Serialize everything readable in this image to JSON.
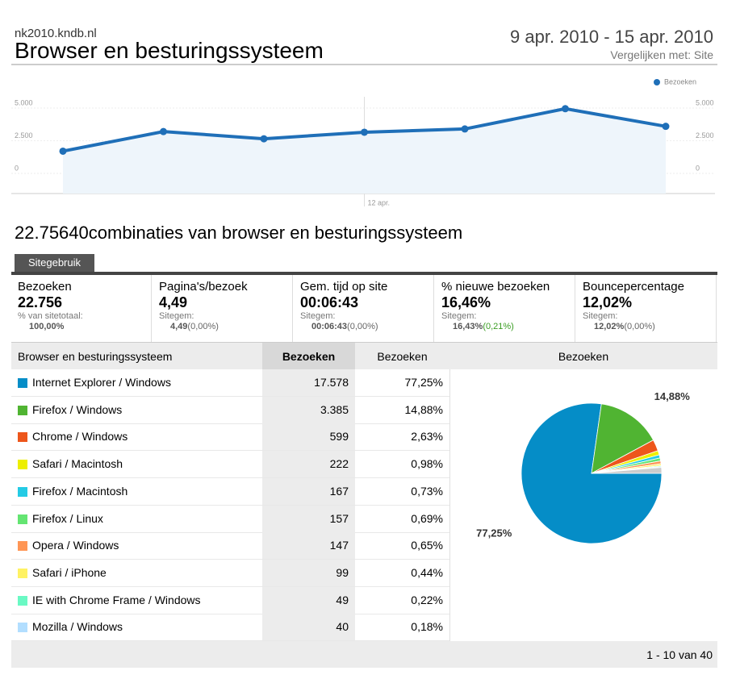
{
  "header": {
    "site": "nk2010.kndb.nl",
    "title": "Browser en besturingssysteem",
    "date_range": "9 apr. 2010 - 15 apr. 2010",
    "compare": "Vergelijken met: Site"
  },
  "chart_data": [
    {
      "type": "line",
      "x": [
        null,
        null,
        null,
        "12 apr.",
        null,
        null,
        null
      ],
      "series": [
        {
          "name": "Bezoeken",
          "color": "#1f6fb8",
          "values": [
            1700,
            3200,
            2650,
            3150,
            3400,
            4950,
            3600
          ]
        }
      ],
      "ylim": [
        0,
        6000
      ],
      "yticks": [
        0,
        {
          "value": 2500,
          "label": "2.500"
        },
        {
          "value": 5000,
          "label": "5.000"
        }
      ],
      "grid": true,
      "legend": "top-right"
    },
    {
      "type": "pie",
      "values": [
        77.25,
        14.88,
        2.63,
        0.98,
        0.73,
        0.69,
        0.65,
        0.44,
        0.22,
        0.18,
        1.35
      ],
      "value_labels": [
        "77,25%",
        "14,88%",
        null,
        null,
        null,
        null,
        null,
        null,
        null,
        null,
        null
      ],
      "colors": [
        "#058dc7",
        "#50b432",
        "#ed561b",
        "#edef00",
        "#24cbe5",
        "#64e572",
        "#ff9655",
        "#fff263",
        "#6af9c4",
        "#b2deff",
        "#cccccc"
      ]
    }
  ],
  "section_title": "22.75640combinaties van browser en besturingssysteem",
  "tab": "Sitegebruik",
  "summary": [
    {
      "label": "Bezoeken",
      "value": "22.756",
      "sub_label": "% van sitetotaal:",
      "sub_value": "100,00%"
    },
    {
      "label": "Pagina's/bezoek",
      "value": "4,49",
      "sub_label": "Sitegem:",
      "sub_value": "4,49",
      "delta": "(0,00%)"
    },
    {
      "label": "Gem. tijd op site",
      "value": "00:06:43",
      "sub_label": "Sitegem:",
      "sub_value": "00:06:43",
      "delta": "(0,00%)"
    },
    {
      "label": "% nieuwe bezoeken",
      "value": "16,46%",
      "sub_label": "Sitegem:",
      "sub_value": "16,43%",
      "delta": "(0,21%)"
    },
    {
      "label": "Bouncepercentage",
      "value": "12,02%",
      "sub_label": "Sitegem:",
      "sub_value": "12,02%",
      "delta": "(0,00%)"
    }
  ],
  "table": {
    "headers": [
      "Browser en besturingssysteem",
      "Bezoeken",
      "Bezoeken",
      "Bezoeken"
    ],
    "rows": [
      [
        "Internet Explorer / Windows",
        "17.578",
        "77,25%"
      ],
      [
        "Firefox / Windows",
        "3.385",
        "14,88%"
      ],
      [
        "Chrome / Windows",
        "599",
        "2,63%"
      ],
      [
        "Safari / Macintosh",
        "222",
        "0,98%"
      ],
      [
        "Firefox / Macintosh",
        "167",
        "0,73%"
      ],
      [
        "Firefox / Linux",
        "157",
        "0,69%"
      ],
      [
        "Opera / Windows",
        "147",
        "0,65%"
      ],
      [
        "Safari / iPhone",
        "99",
        "0,44%"
      ],
      [
        "IE with Chrome Frame / Windows",
        "49",
        "0,22%"
      ],
      [
        "Mozilla / Windows",
        "40",
        "0,18%"
      ]
    ],
    "pagination": "1 - 10 van 40"
  }
}
